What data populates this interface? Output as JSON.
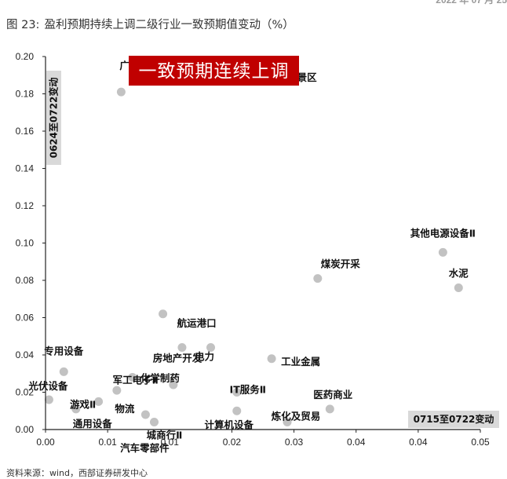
{
  "header": {
    "date_fragment": "2022 年 07 月 25",
    "figure_number": "图 23:",
    "figure_title": "盈利预期持续上调二级行业一致预期值变动（%）"
  },
  "footer": {
    "source": "资料来源：wind，西部证券研发中心"
  },
  "colors": {
    "point": "#c2c2c2",
    "banner_bg": "#c00000",
    "banner_text": "#ffffff",
    "axis_label_bg": "#d9d9d9",
    "axis": "#222222"
  },
  "chart_data": {
    "type": "scatter",
    "banner": "一致预期连续上调",
    "xlabel": "0715至0722变动",
    "ylabel": "0624至0722变动",
    "xlim": [
      0,
      0.05
    ],
    "ylim": [
      0,
      0.2
    ],
    "x_ticks": [
      "0.00",
      "0.01",
      "0.01",
      "0.02",
      "0.03",
      "0.04",
      "0.04",
      "0.05"
    ],
    "x_tick_values": [
      0,
      0.007143,
      0.014286,
      0.021429,
      0.028571,
      0.035714,
      0.042857,
      0.05
    ],
    "y_ticks": [
      "0.00",
      "0.02",
      "0.04",
      "0.06",
      "0.08",
      "0.10",
      "0.12",
      "0.14",
      "0.16",
      "0.18",
      "0.20"
    ],
    "y_tick_values": [
      0,
      0.02,
      0.04,
      0.06,
      0.08,
      0.1,
      0.12,
      0.14,
      0.16,
      0.18,
      0.2
    ],
    "grid": false,
    "points": [
      {
        "label": "广告营销",
        "x": 0.0087,
        "y": 0.181
      },
      {
        "label": "旅游及景区",
        "x": 0.027,
        "y": 0.192
      },
      {
        "label": "其他电源设备Ⅱ",
        "x": 0.0457,
        "y": 0.095
      },
      {
        "label": "煤炭开采",
        "x": 0.0313,
        "y": 0.081
      },
      {
        "label": "水泥",
        "x": 0.0475,
        "y": 0.076
      },
      {
        "label": "航运港口",
        "x": 0.0135,
        "y": 0.062
      },
      {
        "label": "房地产开发",
        "x": 0.0157,
        "y": 0.044
      },
      {
        "label": "电力",
        "x": 0.019,
        "y": 0.044
      },
      {
        "label": "专用设备",
        "x": 0.0021,
        "y": 0.031
      },
      {
        "label": "军工电子Ⅱ",
        "x": 0.01,
        "y": 0.028
      },
      {
        "label": "化学制药",
        "x": 0.0147,
        "y": 0.024
      },
      {
        "label": "物流",
        "x": 0.0082,
        "y": 0.021
      },
      {
        "label": "光伏设备",
        "x": 0.0004,
        "y": 0.016
      },
      {
        "label": "游戏Ⅱ",
        "x": 0.0061,
        "y": 0.015
      },
      {
        "label": "通用设备",
        "x": 0.0035,
        "y": 0.011
      },
      {
        "label": "汽车零部件",
        "x": 0.0115,
        "y": 0.008
      },
      {
        "label": "城商行Ⅱ",
        "x": 0.0125,
        "y": 0.004
      },
      {
        "label": "工业金属",
        "x": 0.026,
        "y": 0.038
      },
      {
        "label": "IT服务Ⅱ",
        "x": 0.022,
        "y": 0.02
      },
      {
        "label": "计算机设备",
        "x": 0.022,
        "y": 0.01
      },
      {
        "label": "医药商业",
        "x": 0.0327,
        "y": 0.011
      },
      {
        "label": "炼化及贸易",
        "x": 0.0278,
        "y": 0.004
      }
    ]
  }
}
